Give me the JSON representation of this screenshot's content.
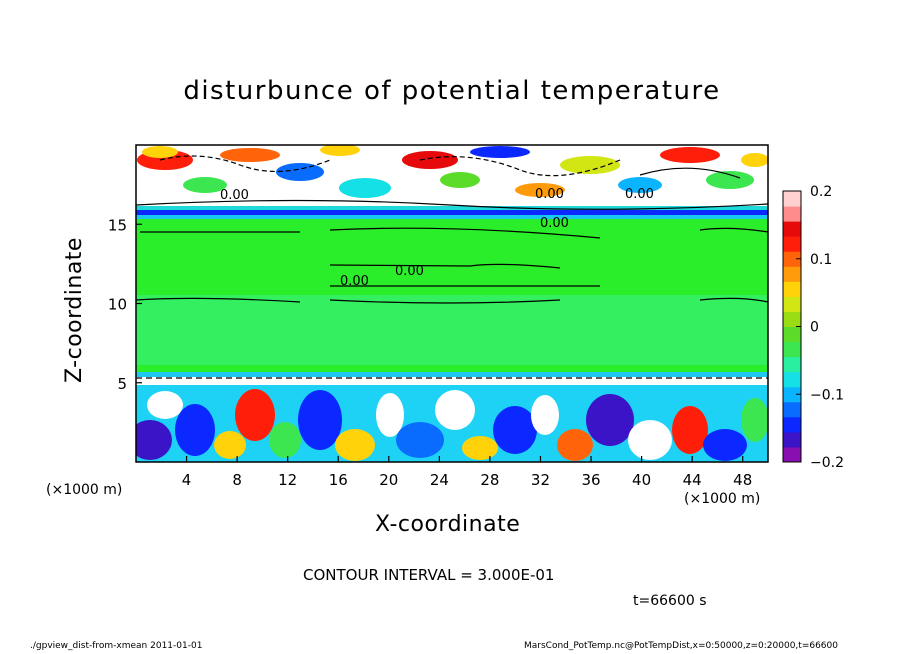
{
  "chart_data": {
    "type": "heatmap",
    "title": "disturbunce of potential temperature",
    "xlabel": "X-coordinate",
    "ylabel": "Z-coordinate",
    "x_unit_label": "(×1000 m)",
    "x_ticks": [
      4,
      8,
      12,
      16,
      20,
      24,
      28,
      32,
      36,
      40,
      44,
      48
    ],
    "y_ticks": [
      5,
      10,
      15
    ],
    "xlim": [
      0,
      50
    ],
    "ylim": [
      0,
      20
    ],
    "colorbar": {
      "ticks": [
        "0.2",
        "0.1",
        "0",
        "−0.1",
        "−0.2"
      ],
      "tick_values": [
        0.2,
        0.1,
        0,
        -0.1,
        -0.2
      ],
      "range": [
        -0.2,
        0.2
      ],
      "colors": [
        "#8a0fb0",
        "#3c14c8",
        "#0a28ff",
        "#0a6cff",
        "#0ab4ff",
        "#15e0e6",
        "#28f0a0",
        "#3ce650",
        "#5adc28",
        "#9adc14",
        "#d2e614",
        "#ffd20a",
        "#ff9a0a",
        "#ff640a",
        "#ff1e0a",
        "#e60a0a",
        "#ff8c8c",
        "#ffd0d0"
      ]
    },
    "contour_labels": [
      "0.00",
      "0.00",
      "0.00",
      "0.00",
      "0.00",
      "0.00"
    ],
    "contour_interval": "CONTOUR INTERVAL = 3.000E-01",
    "time": "t=66600 s"
  },
  "footer": {
    "left": "./gpview_dist-from-xmean   2011-01-01",
    "right": "MarsCond_PotTemp.nc@PotTempDist,x=0:50000,z=0:20000,t=66600"
  },
  "colors": {
    "field_green": "#2bee2b",
    "field_light_green": "#3ef56a",
    "band_cyan": "#17e6e8",
    "band_blue": "#0a28ff"
  }
}
